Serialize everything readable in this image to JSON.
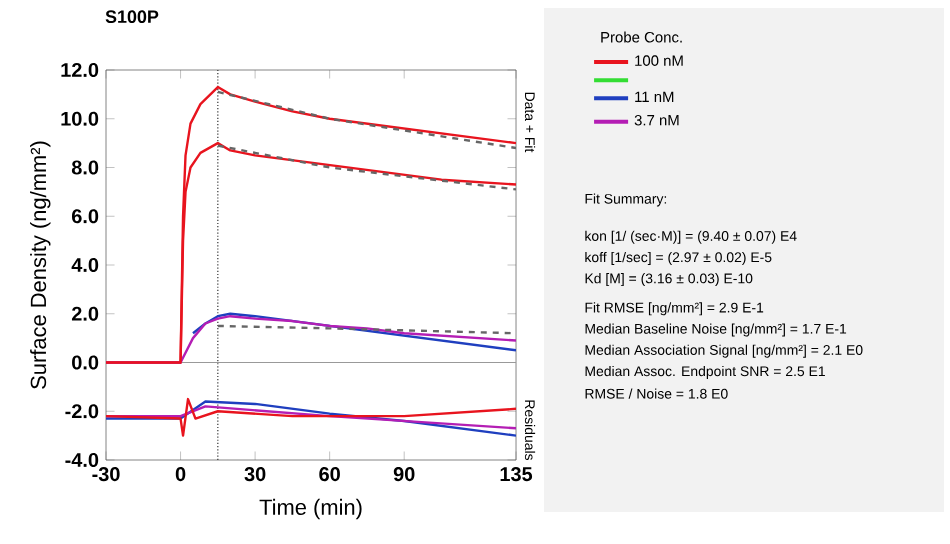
{
  "chart_data": {
    "type": "line",
    "title": "S100P",
    "xlabel": "Time (min)",
    "ylabel": "Surface Density (ng/mm²)",
    "legend_title": "Probe Conc.",
    "legend": "right",
    "marker": "none",
    "line_style": "solid",
    "grid": false,
    "xlim": [
      -30,
      135
    ],
    "ylim": [
      -4,
      12
    ],
    "xticks": [
      -30,
      0,
      30,
      60,
      90,
      135
    ],
    "yticks": [
      {
        "value": -4,
        "label": "-4.0"
      },
      {
        "value": -2,
        "label": "-2.0"
      },
      {
        "value": 0,
        "label": "0.0"
      },
      {
        "value": 2,
        "label": "2.0"
      },
      {
        "value": 4,
        "label": "4.0"
      },
      {
        "value": 6,
        "label": "6.0"
      },
      {
        "value": 8,
        "label": "8.0"
      },
      {
        "value": 10,
        "label": "10.0"
      },
      {
        "value": 12,
        "label": "12.0"
      }
    ],
    "ref_lines": [
      {
        "axis": "x",
        "value": 15,
        "color": "#333333",
        "line_style": "dotted"
      },
      {
        "axis": "y",
        "value": 0,
        "color": "#999999",
        "line_style": "solid"
      }
    ],
    "series": [
      {
        "name": "100 nM",
        "color": "#e8141e",
        "x": [
          -30,
          -5,
          0,
          1,
          2,
          4,
          8,
          15,
          20,
          30,
          45,
          60,
          75,
          90,
          105,
          120,
          135
        ],
        "values": [
          0,
          0,
          0,
          6,
          8.5,
          9.8,
          10.6,
          11.3,
          11.0,
          10.7,
          10.3,
          10.0,
          9.8,
          9.6,
          9.4,
          9.2,
          9.0
        ]
      },
      {
        "name": null,
        "color": "#33dd33"
      },
      {
        "name": "11 nM",
        "color": "#1f3fbf",
        "x": [
          5,
          10,
          15,
          20,
          30,
          45,
          60,
          75,
          90,
          105,
          120,
          135
        ],
        "values": [
          1.2,
          1.6,
          1.9,
          2.0,
          1.9,
          1.7,
          1.5,
          1.3,
          1.1,
          0.9,
          0.7,
          0.5
        ]
      },
      {
        "name": "3.7 nM",
        "color": "#b41eb4",
        "x": [
          -30,
          0,
          5,
          10,
          15,
          20,
          30,
          45,
          60,
          75,
          90,
          105,
          120,
          135
        ],
        "values": [
          0,
          0,
          1.0,
          1.6,
          1.8,
          1.9,
          1.8,
          1.7,
          1.5,
          1.4,
          1.2,
          1.1,
          1.0,
          0.9
        ]
      },
      {
        "color": "#e8141e",
        "x": [
          -30,
          -5,
          0,
          1,
          2,
          4,
          8,
          15,
          20,
          30,
          45,
          60,
          75,
          90,
          105,
          120,
          135
        ],
        "values": [
          0,
          0,
          0,
          5,
          7,
          8.0,
          8.6,
          9.0,
          8.7,
          8.5,
          8.3,
          8.1,
          7.9,
          7.7,
          7.5,
          7.4,
          7.3
        ]
      },
      {
        "color": "#666666",
        "line_style": "dashed",
        "x": [
          15,
          60,
          135
        ],
        "values": [
          11.1,
          10.0,
          8.8
        ]
      },
      {
        "color": "#666666",
        "line_style": "dashed",
        "x": [
          15,
          60,
          135
        ],
        "values": [
          8.9,
          8.0,
          7.1
        ]
      },
      {
        "color": "#666666",
        "line_style": "dashed",
        "x": [
          15,
          60,
          135
        ],
        "values": [
          1.5,
          1.4,
          1.2
        ]
      },
      {
        "color": "#1f3fbf",
        "x": [
          -30,
          0,
          10,
          30,
          60,
          90,
          135
        ],
        "values": [
          -2.3,
          -2.3,
          -1.6,
          -1.7,
          -2.1,
          -2.4,
          -3.0
        ]
      },
      {
        "color": "#b41eb4",
        "x": [
          -30,
          0,
          10,
          60,
          90,
          135
        ],
        "values": [
          -2.2,
          -2.2,
          -1.8,
          -2.2,
          -2.4,
          -2.7
        ]
      },
      {
        "color": "#e8141e",
        "x": [
          -30,
          0,
          1,
          3,
          6,
          15,
          45,
          90,
          135
        ],
        "values": [
          -2.2,
          -2.3,
          -3.0,
          -1.5,
          -2.3,
          -2.0,
          -2.2,
          -2.2,
          -1.9
        ]
      }
    ],
    "annotations": [
      "Data + Fit",
      "Residuals",
      "Fit Summary:",
      "kon [1/ (sec·M)] = (9.40 ± 0.07) E4",
      "koff [1/sec] = (2.97 ± 0.02) E-5",
      "Kd [M] = (3.16 ± 0.03) E-10",
      "Fit RMSE [ng/mm²] = 2.9 E-1",
      "Median Baseline Noise [ng/mm²] = 1.7 E-1",
      "Median Association Signal [ng/mm²] = 2.1 E0",
      "Median Assoc. Endpoint SNR = 2.5 E1",
      "RMSE / Noise = 1.8 E0"
    ]
  }
}
